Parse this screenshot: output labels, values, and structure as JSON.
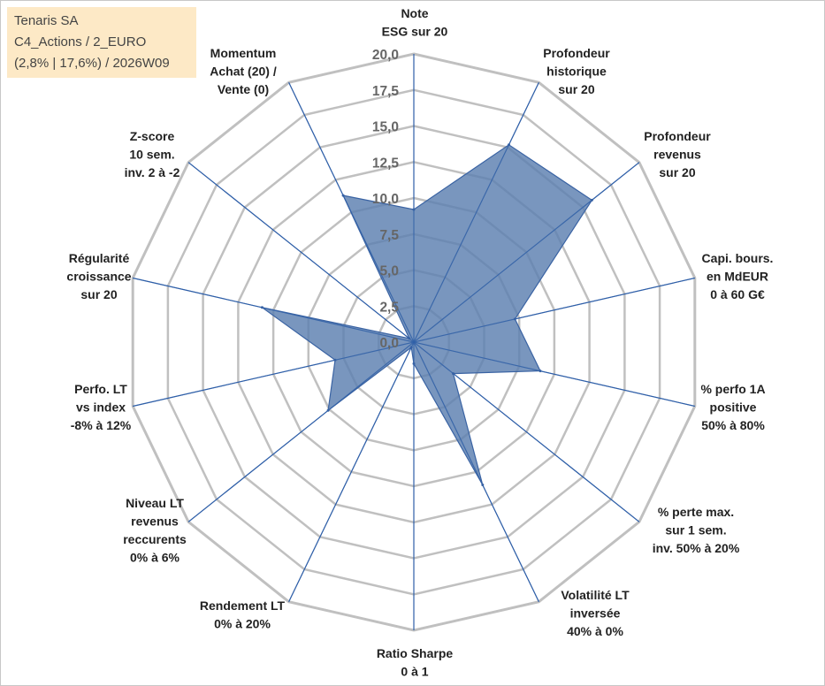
{
  "info_box": {
    "line1": "Tenaris SA",
    "line2": "C4_Actions / 2_EURO",
    "line3": "(2,8% | 17,6%) / 2026W09"
  },
  "colors": {
    "grid": "#c0c0c0",
    "spoke": "#2f5fa8",
    "fill": "#5b7fb0",
    "fill_stroke": "#3a63a3",
    "info_bg": "#fde9c6"
  },
  "chart_data": {
    "type": "radar",
    "title": "",
    "rmin": 0,
    "rmax": 20,
    "tick_step": 2.5,
    "tick_labels": [
      "0,0",
      "2,5",
      "5,0",
      "7,5",
      "10,0",
      "12,5",
      "15,0",
      "17,5",
      "20,0"
    ],
    "grid": true,
    "axes": [
      {
        "label": [
          "Note",
          "ESG sur 20"
        ]
      },
      {
        "label": [
          "Profondeur",
          "historique",
          "sur 20"
        ]
      },
      {
        "label": [
          "Profondeur",
          "revenus",
          "sur 20"
        ]
      },
      {
        "label": [
          "Capi. bours.",
          "en MdEUR",
          "0 à 60 G€"
        ]
      },
      {
        "label": [
          "% perfo 1A",
          "positive",
          "50% à 80%"
        ]
      },
      {
        "label": [
          "% perte max.",
          "sur 1 sem.",
          "inv. 50% à 20%"
        ]
      },
      {
        "label": [
          "Volatilité LT",
          "inversée",
          "40% à 0%"
        ]
      },
      {
        "label": [
          "Ratio Sharpe",
          "0 à 1"
        ]
      },
      {
        "label": [
          "Rendement LT",
          "0% à 20%"
        ]
      },
      {
        "label": [
          "Niveau LT",
          "revenus",
          "reccurents",
          "0% à 6%"
        ]
      },
      {
        "label": [
          "Perfo. LT",
          "vs index",
          "-8% à 12%"
        ]
      },
      {
        "label": [
          "Régularité",
          "croissance",
          "sur 20"
        ]
      },
      {
        "label": [
          "Z-score",
          "10 sem.",
          "inv. 2 à -2"
        ]
      },
      {
        "label": [
          "Momentum",
          "Achat (20) /",
          "Vente (0)"
        ]
      }
    ],
    "series": [
      {
        "values": [
          9.2,
          15.2,
          15.8,
          7.2,
          9.0,
          3.5,
          11.0,
          1.5,
          0.4,
          7.6,
          5.6,
          10.8,
          0.4,
          11.3
        ]
      }
    ]
  }
}
